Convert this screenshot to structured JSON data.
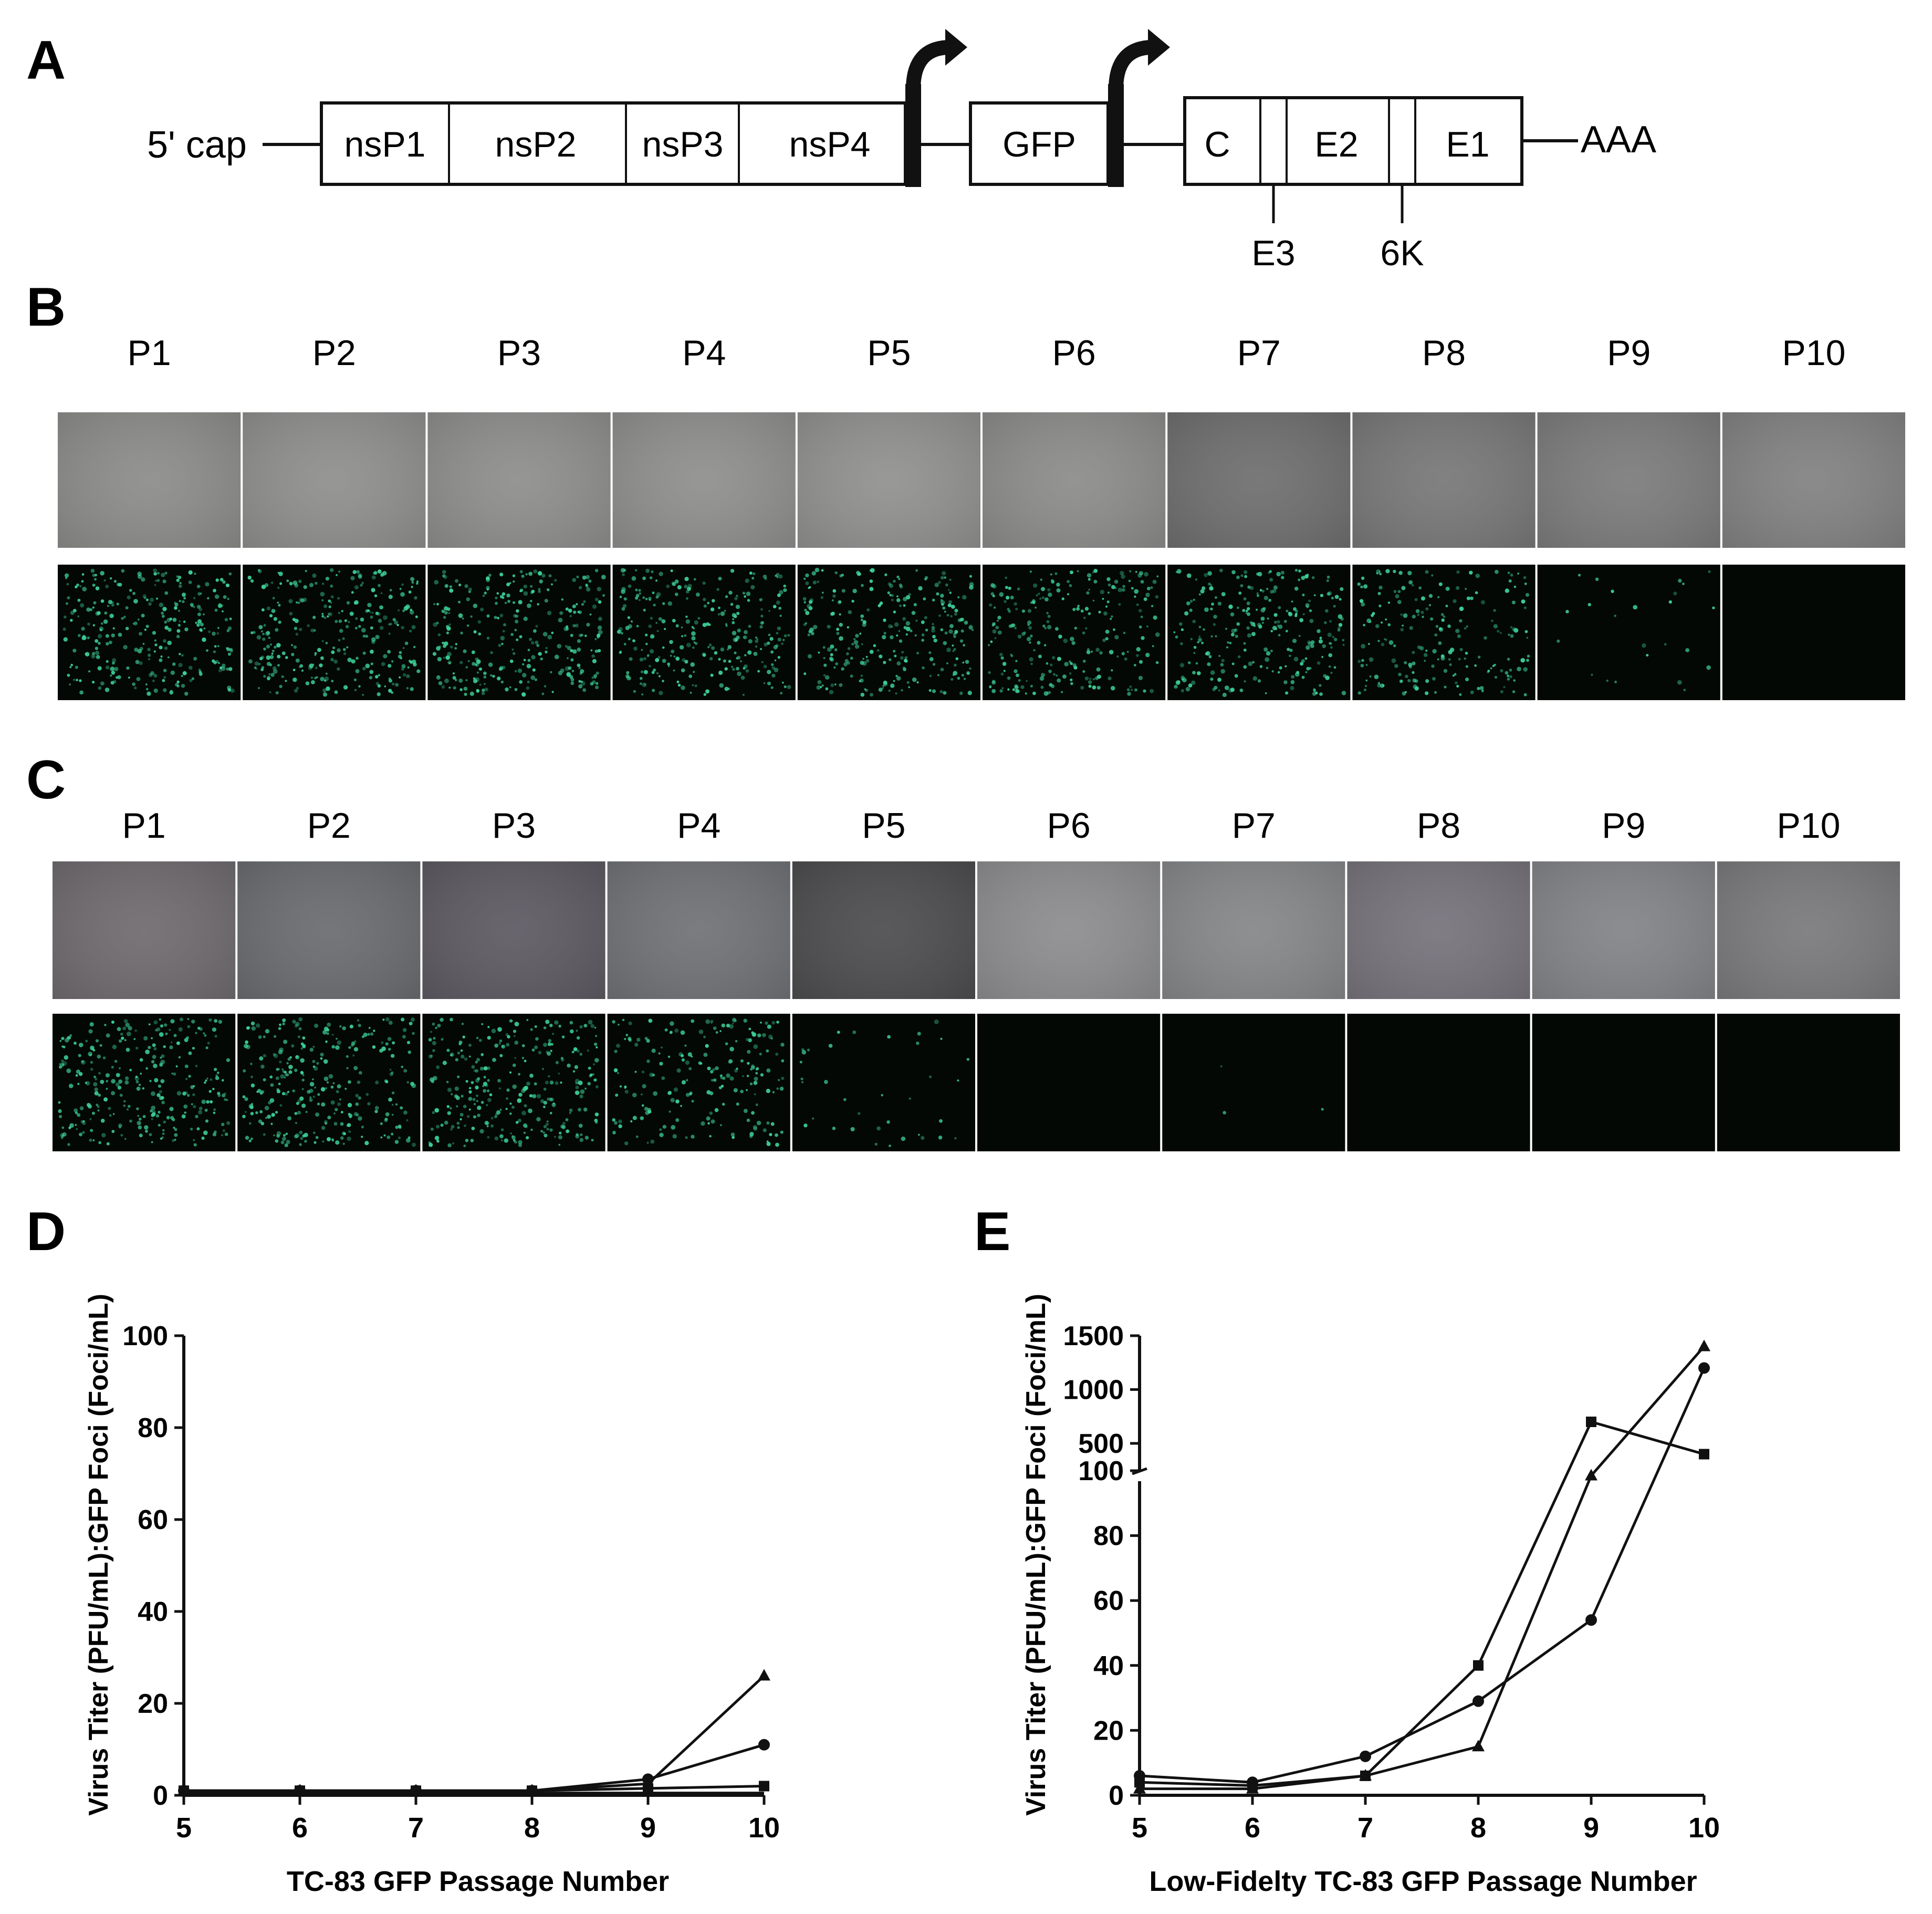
{
  "panel_letters": {
    "a": "A",
    "b": "B",
    "c": "C",
    "d": "D",
    "e": "E"
  },
  "genome": {
    "cap": "5' cap",
    "tail": "AAA",
    "nonstructural": [
      "nsP1",
      "nsP2",
      "nsP3",
      "nsP4"
    ],
    "reporter": "GFP",
    "structural": [
      "C",
      "E2",
      "E1"
    ],
    "small_genes": [
      "E3",
      "6K"
    ]
  },
  "passages": [
    "P1",
    "P2",
    "P3",
    "P4",
    "P5",
    "P6",
    "P7",
    "P8",
    "P9",
    "P10"
  ],
  "panel_b": {
    "brightfield_gray": [
      "#8c8c8a",
      "#8f8f8e",
      "#8e8e8d",
      "#8f8f8e",
      "#919190",
      "#8c8c8b",
      "#6f6f6f",
      "#787878",
      "#7c7c7c",
      "#828282"
    ],
    "gfp_focus_density": [
      1.0,
      1.0,
      1.0,
      0.95,
      0.95,
      0.85,
      0.9,
      0.7,
      0.08,
      0.0
    ]
  },
  "panel_c": {
    "brightfield_gray": [
      "#6f6b6f",
      "#6a6c70",
      "#5e5a63",
      "#707276",
      "#4d4d4f",
      "#8d8d90",
      "#858789",
      "#77737c",
      "#838488",
      "#7a7a7c"
    ],
    "gfp_focus_density": [
      1.0,
      1.0,
      1.0,
      0.7,
      0.12,
      0.0,
      0.01,
      0.0,
      0.0,
      0.0
    ]
  },
  "colors": {
    "gfp": "#3fd69a",
    "dark_field": "#030805",
    "line": "#111111"
  },
  "chart_data": [
    {
      "type": "line",
      "panel": "D",
      "xlabel": "TC-83 GFP Passage Number",
      "ylabel": "Virus Titer (PFU/mL):GFP Foci (Foci/mL)",
      "x": [
        5,
        6,
        7,
        8,
        9,
        10
      ],
      "xlim": [
        5,
        10
      ],
      "ylim": [
        0,
        100
      ],
      "yticks": [
        0,
        20,
        40,
        60,
        80,
        100
      ],
      "series": [
        {
          "marker": "triangle",
          "values": [
            1,
            1,
            1,
            1,
            2.5,
            26
          ]
        },
        {
          "marker": "circle",
          "values": [
            1,
            1,
            1,
            1,
            3.5,
            11
          ]
        },
        {
          "marker": "square",
          "values": [
            1,
            1,
            1,
            1,
            1.5,
            2
          ]
        },
        {
          "marker": "none",
          "values": [
            0.5,
            0.5,
            0.5,
            0.5,
            0.5,
            0.5
          ]
        }
      ]
    },
    {
      "type": "line",
      "panel": "E",
      "xlabel": "Low-Fidelty TC-83 GFP Passage Number",
      "ylabel": "Virus Titer (PFU/mL):GFP Foci (Foci/mL)",
      "x": [
        5,
        6,
        7,
        8,
        9,
        10
      ],
      "xlim": [
        5,
        10
      ],
      "y_scale": "broken axis: linear 0–100 below the break, linear 100–1500 above",
      "yticks_lower": [
        0,
        20,
        40,
        60,
        80,
        100
      ],
      "yticks_upper": [
        500,
        1000,
        1500
      ],
      "series": [
        {
          "marker": "square",
          "values": [
            4,
            3,
            6,
            40,
            700,
            400
          ]
        },
        {
          "marker": "triangle",
          "values": [
            2,
            2,
            6,
            15,
            200,
            1400
          ]
        },
        {
          "marker": "circle",
          "values": [
            6,
            4,
            12,
            29,
            54,
            1200
          ]
        }
      ]
    }
  ]
}
